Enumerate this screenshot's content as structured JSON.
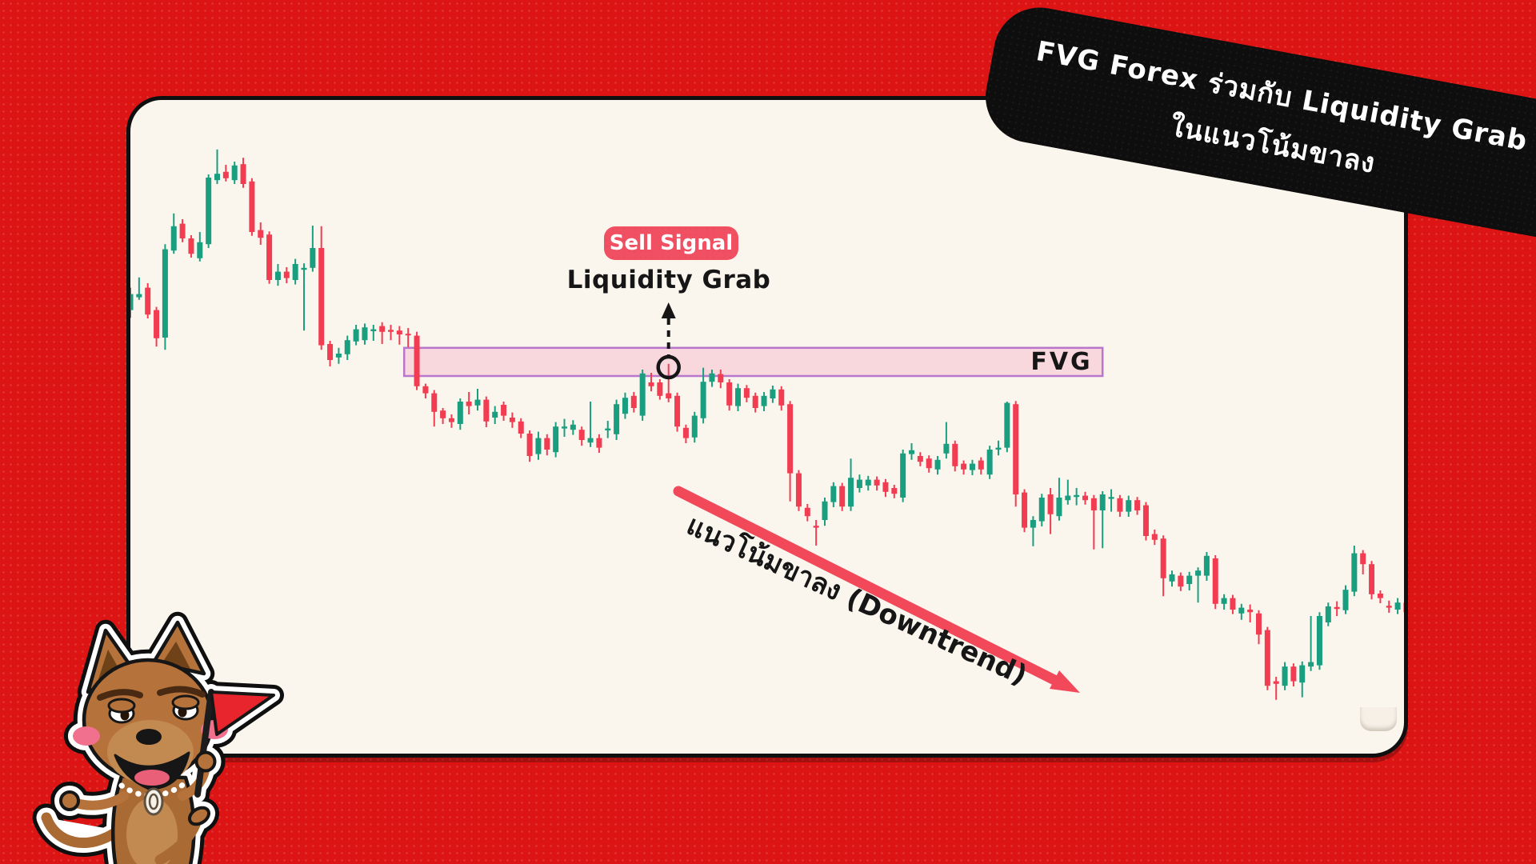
{
  "canvas": {
    "background": "#dc1414",
    "card_background": "#faf5ed",
    "card_border": "#101010"
  },
  "title_banner": {
    "line1": "FVG Forex ร่วมกับ Liquidity Grab",
    "line2": "ในแนวโน้มขาลง",
    "background": "#0f0e0e",
    "text_color": "#ffffff"
  },
  "annotations": {
    "sell_signal": {
      "label": "Sell Signal",
      "background": "#f15062",
      "text_color": "#ffffff"
    },
    "liquidity_grab": {
      "label": "Liquidity Grab",
      "color": "#161616"
    },
    "fvg": {
      "label": "FVG",
      "fill": "#f8d7dd",
      "border": "#b877cc",
      "label_color": "#161616"
    },
    "downtrend": {
      "label": "แนวโน้มขาลง (Downtrend)",
      "arrow_color": "#f1485a",
      "label_color": "#161616"
    }
  },
  "mascot": {
    "icon_name": "dog-with-red-flag-icon"
  },
  "chart_data": {
    "type": "candlestick",
    "title": "FVG Forex with Liquidity Grab in a downtrend",
    "grid": false,
    "axes_labeled": false,
    "price_range": [
      0,
      100
    ],
    "colors": {
      "up": "#1a9e80",
      "down": "#f23c52"
    },
    "fvg_zone": {
      "start_index": 32,
      "end_index": 112,
      "top_price": 64.4,
      "bottom_price": 60.0
    },
    "liquidity_grab_index": 62,
    "candles": [
      [
        70.3,
        73.8,
        69.1,
        72.8
      ],
      [
        72.3,
        75.4,
        71.9,
        72.8
      ],
      [
        73.8,
        74.5,
        69.0,
        69.6
      ],
      [
        70.3,
        70.8,
        64.6,
        65.9
      ],
      [
        66.0,
        80.6,
        64.1,
        79.8
      ],
      [
        79.6,
        85.4,
        79.1,
        83.4
      ],
      [
        83.8,
        84.5,
        80.9,
        81.5
      ],
      [
        81.5,
        82.0,
        78.5,
        79.1
      ],
      [
        78.4,
        82.5,
        77.9,
        80.9
      ],
      [
        80.6,
        91.5,
        80.0,
        91.0
      ],
      [
        90.6,
        95.4,
        90.0,
        91.6
      ],
      [
        91.9,
        93.0,
        90.4,
        90.9
      ],
      [
        90.6,
        93.5,
        90.0,
        92.9
      ],
      [
        93.1,
        94.1,
        89.4,
        90.0
      ],
      [
        90.4,
        90.9,
        81.9,
        82.5
      ],
      [
        82.8,
        84.0,
        80.5,
        81.6
      ],
      [
        82.1,
        82.6,
        74.4,
        75.0
      ],
      [
        75.0,
        77.5,
        74.1,
        76.3
      ],
      [
        76.3,
        77.0,
        74.5,
        75.3
      ],
      [
        75.0,
        78.3,
        74.3,
        77.5
      ],
      [
        76.6,
        77.6,
        67.1,
        76.9
      ],
      [
        76.9,
        83.5,
        76.3,
        80.0
      ],
      [
        80.0,
        83.4,
        64.1,
        64.8
      ],
      [
        65.0,
        65.5,
        61.5,
        62.5
      ],
      [
        62.9,
        64.4,
        61.9,
        63.5
      ],
      [
        63.4,
        66.3,
        62.5,
        65.6
      ],
      [
        65.4,
        68.0,
        64.8,
        67.3
      ],
      [
        65.6,
        68.2,
        64.9,
        67.6
      ],
      [
        67.0,
        68.0,
        65.5,
        67.3
      ],
      [
        67.8,
        68.4,
        65.0,
        66.9
      ],
      [
        67.2,
        68.0,
        65.6,
        66.9
      ],
      [
        67.1,
        67.8,
        64.9,
        66.5
      ],
      [
        66.6,
        67.5,
        64.5,
        66.4
      ],
      [
        66.3,
        66.9,
        57.8,
        58.4
      ],
      [
        58.4,
        58.8,
        56.5,
        57.3
      ],
      [
        57.3,
        57.8,
        52.1,
        54.4
      ],
      [
        54.6,
        55.0,
        52.5,
        53.4
      ],
      [
        53.4,
        54.0,
        51.9,
        52.8
      ],
      [
        52.5,
        56.5,
        51.6,
        56.0
      ],
      [
        56.0,
        57.5,
        54.0,
        55.3
      ],
      [
        55.4,
        58.0,
        54.6,
        56.3
      ],
      [
        56.3,
        56.8,
        52.0,
        52.9
      ],
      [
        53.5,
        55.3,
        52.5,
        54.4
      ],
      [
        55.5,
        56.0,
        53.0,
        53.8
      ],
      [
        53.5,
        54.3,
        51.9,
        52.8
      ],
      [
        52.9,
        53.4,
        50.3,
        51.0
      ],
      [
        51.0,
        51.5,
        46.6,
        47.5
      ],
      [
        47.8,
        51.3,
        46.9,
        50.3
      ],
      [
        50.3,
        50.9,
        47.6,
        48.5
      ],
      [
        48.1,
        52.8,
        47.3,
        52.1
      ],
      [
        51.8,
        53.3,
        50.5,
        52.1
      ],
      [
        51.6,
        53.1,
        50.8,
        52.4
      ],
      [
        51.6,
        52.1,
        49.1,
        50.0
      ],
      [
        49.6,
        56.0,
        48.9,
        50.3
      ],
      [
        50.3,
        50.9,
        48.0,
        48.8
      ],
      [
        51.5,
        53.0,
        50.3,
        51.8
      ],
      [
        50.9,
        56.3,
        50.0,
        55.6
      ],
      [
        54.1,
        57.4,
        53.3,
        56.6
      ],
      [
        56.9,
        57.5,
        54.3,
        55.0
      ],
      [
        53.8,
        61.0,
        53.0,
        60.4
      ],
      [
        59.0,
        60.5,
        57.6,
        58.4
      ],
      [
        59.0,
        59.5,
        56.3,
        56.9
      ],
      [
        57.3,
        61.9,
        55.9,
        56.5
      ],
      [
        56.9,
        57.4,
        51.3,
        52.1
      ],
      [
        51.9,
        52.4,
        49.5,
        50.3
      ],
      [
        50.4,
        54.4,
        49.6,
        53.8
      ],
      [
        53.4,
        61.3,
        52.6,
        59.1
      ],
      [
        59.1,
        61.0,
        58.3,
        60.4
      ],
      [
        60.3,
        61.0,
        58.1,
        59.0
      ],
      [
        59.0,
        59.5,
        54.6,
        55.4
      ],
      [
        55.3,
        58.8,
        54.5,
        58.1
      ],
      [
        58.1,
        58.6,
        55.9,
        56.6
      ],
      [
        56.9,
        57.4,
        54.3,
        55.0
      ],
      [
        55.3,
        57.5,
        54.5,
        56.9
      ],
      [
        56.5,
        58.5,
        55.8,
        57.9
      ],
      [
        57.9,
        58.4,
        54.6,
        55.4
      ],
      [
        55.6,
        56.1,
        40.4,
        44.8
      ],
      [
        44.8,
        45.3,
        38.9,
        39.6
      ],
      [
        39.4,
        40.0,
        37.3,
        38.1
      ],
      [
        36.6,
        37.5,
        33.5,
        36.3
      ],
      [
        37.5,
        41.0,
        36.6,
        40.4
      ],
      [
        40.3,
        43.4,
        39.5,
        42.8
      ],
      [
        42.8,
        43.3,
        38.9,
        39.6
      ],
      [
        39.6,
        47.1,
        38.9,
        44.1
      ],
      [
        42.5,
        44.6,
        41.8,
        43.8
      ],
      [
        42.9,
        44.4,
        42.1,
        43.8
      ],
      [
        43.8,
        44.3,
        42.1,
        42.9
      ],
      [
        43.4,
        43.9,
        41.1,
        41.9
      ],
      [
        42.5,
        43.0,
        40.9,
        41.6
      ],
      [
        41.0,
        48.5,
        40.3,
        47.9
      ],
      [
        47.8,
        49.5,
        46.9,
        48.4
      ],
      [
        47.5,
        48.1,
        45.9,
        46.6
      ],
      [
        47.1,
        47.6,
        44.9,
        45.6
      ],
      [
        45.4,
        47.5,
        44.6,
        46.9
      ],
      [
        47.9,
        52.8,
        47.1,
        49.4
      ],
      [
        49.4,
        49.9,
        45.1,
        45.9
      ],
      [
        46.3,
        46.8,
        44.6,
        45.4
      ],
      [
        45.3,
        46.9,
        44.5,
        46.3
      ],
      [
        46.8,
        47.3,
        44.6,
        45.4
      ],
      [
        44.6,
        49.1,
        43.9,
        48.5
      ],
      [
        48.5,
        49.9,
        47.6,
        48.8
      ],
      [
        48.8,
        56.0,
        48.1,
        55.8
      ],
      [
        55.6,
        56.1,
        39.6,
        41.5
      ],
      [
        41.8,
        42.3,
        35.6,
        36.3
      ],
      [
        36.3,
        38.1,
        33.4,
        37.5
      ],
      [
        37.3,
        41.6,
        36.5,
        41.0
      ],
      [
        41.5,
        42.5,
        35.3,
        38.4
      ],
      [
        38.1,
        44.1,
        37.4,
        41.0
      ],
      [
        40.6,
        43.8,
        39.9,
        41.3
      ],
      [
        41.1,
        42.5,
        39.8,
        41.4
      ],
      [
        41.3,
        41.9,
        39.9,
        40.6
      ],
      [
        40.9,
        41.4,
        32.9,
        39.0
      ],
      [
        39.0,
        42.0,
        33.1,
        41.5
      ],
      [
        40.8,
        42.3,
        38.8,
        41.1
      ],
      [
        40.9,
        41.4,
        38.0,
        38.8
      ],
      [
        38.8,
        41.3,
        38.0,
        40.6
      ],
      [
        40.6,
        41.1,
        38.3,
        39.0
      ],
      [
        39.8,
        40.3,
        34.3,
        35.0
      ],
      [
        35.3,
        36.0,
        33.6,
        34.4
      ],
      [
        34.6,
        35.1,
        25.6,
        28.4
      ],
      [
        27.9,
        29.6,
        27.1,
        29.0
      ],
      [
        28.8,
        29.3,
        26.4,
        27.1
      ],
      [
        27.5,
        29.4,
        26.5,
        28.8
      ],
      [
        28.8,
        30.1,
        24.6,
        29.6
      ],
      [
        28.8,
        32.5,
        28.0,
        31.9
      ],
      [
        31.5,
        32.0,
        23.6,
        24.4
      ],
      [
        24.4,
        25.9,
        23.5,
        25.3
      ],
      [
        25.3,
        25.8,
        22.8,
        23.5
      ],
      [
        22.9,
        24.4,
        21.9,
        23.8
      ],
      [
        23.5,
        24.3,
        21.5,
        23.1
      ],
      [
        22.9,
        23.4,
        18.1,
        19.6
      ],
      [
        20.3,
        20.8,
        10.9,
        11.6
      ],
      [
        12.3,
        13.0,
        9.4,
        11.9
      ],
      [
        11.6,
        15.3,
        10.9,
        14.6
      ],
      [
        14.6,
        15.1,
        11.5,
        12.3
      ],
      [
        12.1,
        15.4,
        9.8,
        14.8
      ],
      [
        14.6,
        22.5,
        13.9,
        15.3
      ],
      [
        14.8,
        23.1,
        14.1,
        22.5
      ],
      [
        21.5,
        24.6,
        20.9,
        24.0
      ],
      [
        23.9,
        24.8,
        22.5,
        23.6
      ],
      [
        23.4,
        27.3,
        22.8,
        26.6
      ],
      [
        26.3,
        33.5,
        25.6,
        32.3
      ],
      [
        32.3,
        32.8,
        29.0,
        30.6
      ],
      [
        30.6,
        31.1,
        25.1,
        25.9
      ],
      [
        26.0,
        26.5,
        24.5,
        25.3
      ],
      [
        24.1,
        24.9,
        23.0,
        23.8
      ],
      [
        23.5,
        25.3,
        22.8,
        24.6
      ],
      [
        24.6,
        25.0,
        22.5,
        23.1
      ]
    ]
  }
}
